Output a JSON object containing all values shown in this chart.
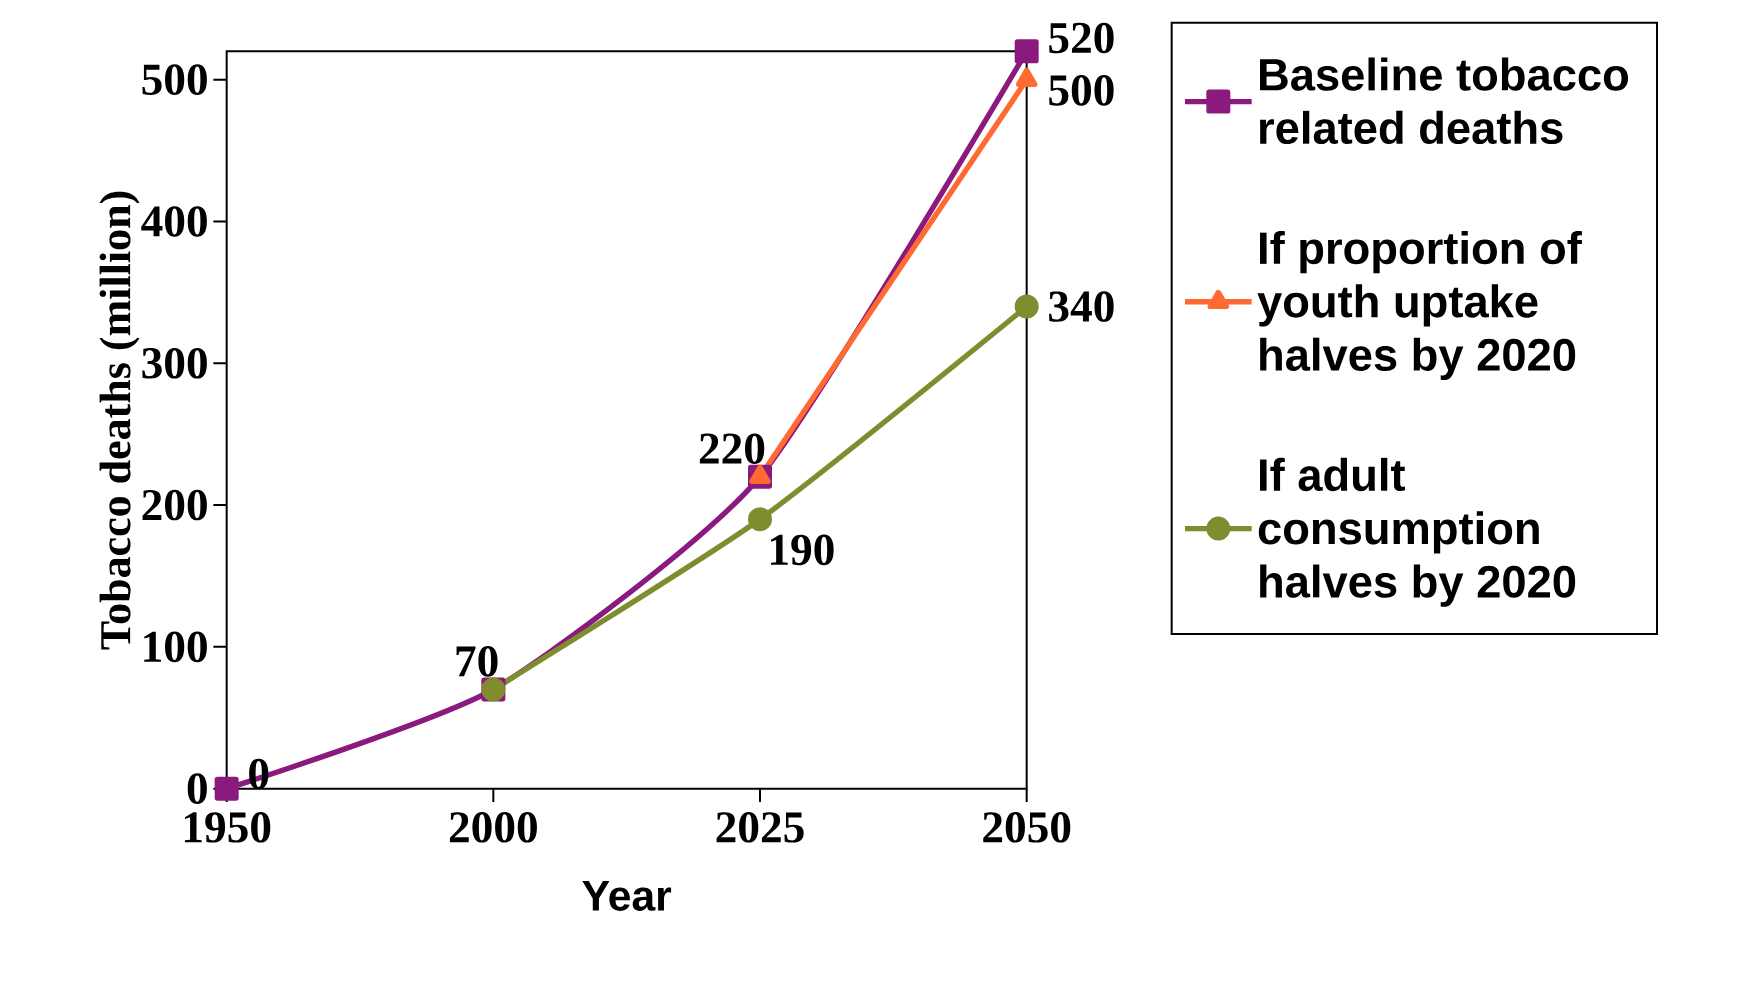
{
  "chart_data": {
    "type": "line",
    "xlabel": "Year",
    "ylabel": "Tobacco deaths (million)",
    "categories": [
      "1950",
      "2000",
      "2025",
      "2050"
    ],
    "ylim": [
      0,
      520
    ],
    "yticks": [
      0,
      100,
      200,
      300,
      400,
      500
    ],
    "legend": "right",
    "line_style": "solid",
    "series": [
      {
        "name": "Baseline tobacco related deaths",
        "color": "#8b1a7e",
        "marker": "square",
        "values": [
          0,
          70,
          220,
          520
        ],
        "value_labels": [
          "0",
          "70",
          "220",
          "520"
        ]
      },
      {
        "name": "If proportion of youth uptake halves by 2020",
        "color": "#ff6a33",
        "marker": "triangle",
        "values": [
          null,
          null,
          220,
          500
        ],
        "value_labels": [
          null,
          null,
          null,
          "500"
        ]
      },
      {
        "name": "If adult consumption halves by 2020",
        "color": "#7f8c2f",
        "marker": "circle",
        "values": [
          null,
          70,
          190,
          340
        ],
        "value_labels": [
          null,
          null,
          "190",
          "340"
        ]
      }
    ]
  }
}
